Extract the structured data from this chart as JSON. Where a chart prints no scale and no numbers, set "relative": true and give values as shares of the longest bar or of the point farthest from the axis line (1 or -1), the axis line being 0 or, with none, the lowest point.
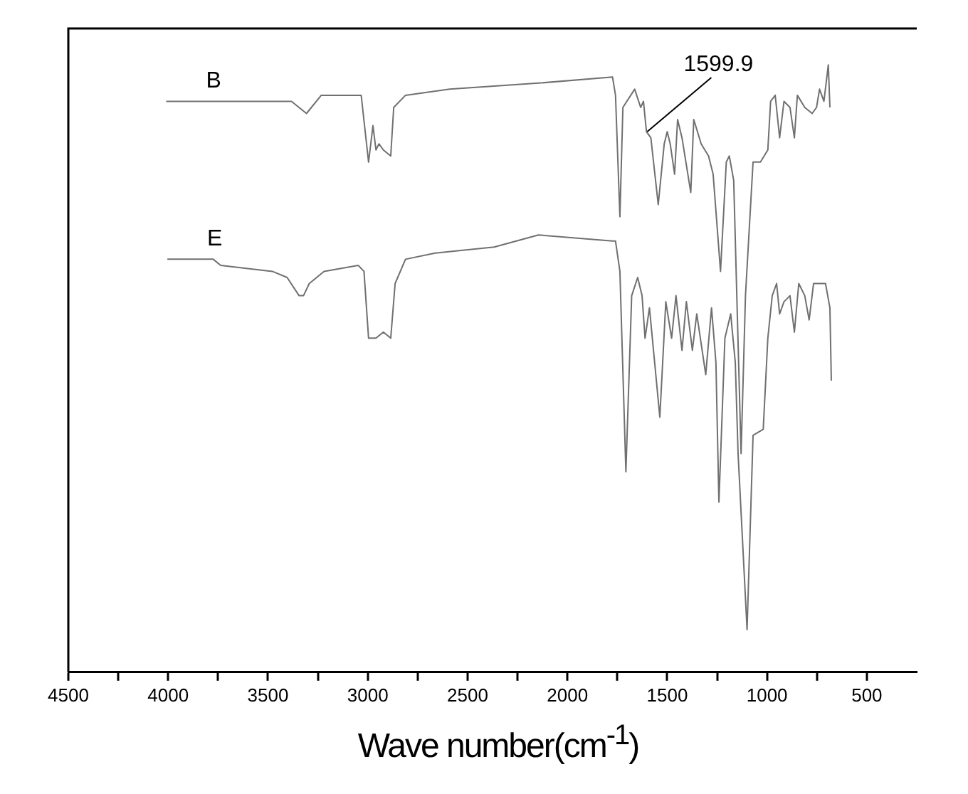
{
  "chart_data": {
    "type": "line",
    "relative": true,
    "xlabel": "Wave number(cm$^{-1}$)",
    "xlim": [
      4500,
      250
    ],
    "xticks": [
      4500,
      {
        "value": 4250,
        "label": null
      },
      4000,
      {
        "value": 3750,
        "label": null
      },
      3500,
      {
        "value": 3250,
        "label": null
      },
      3000,
      {
        "value": 2750,
        "label": null
      },
      2500,
      {
        "value": 2250,
        "label": null
      },
      2000,
      {
        "value": 1750,
        "label": null
      },
      1500,
      {
        "value": 1250,
        "label": null
      },
      1000,
      {
        "value": 750,
        "label": null
      },
      500
    ],
    "grid": false,
    "legend": false,
    "marker": "none",
    "line_style": "solid",
    "annotations": [
      {
        "text": "1599.9",
        "x": 1599.9,
        "y": 0.89
      }
    ],
    "series": [
      {
        "name": "B",
        "color": "#707070",
        "x": [
          4010,
          3382,
          3307,
          3233,
          3033,
          2996,
          2974,
          2959,
          2944,
          2922,
          2885,
          2870,
          2811,
          2589,
          2145,
          1774,
          1759,
          1737,
          1722,
          1663,
          1633,
          1619,
          1604,
          1582,
          1545,
          1515,
          1500,
          1485,
          1463,
          1448,
          1426,
          1382,
          1367,
          1330,
          1293,
          1270,
          1233,
          1204,
          1189,
          1167,
          1130,
          1108,
          1070,
          1033,
          996,
          982,
          959,
          937,
          915,
          885,
          863,
          848,
          811,
          774,
          752,
          737,
          715,
          693,
          685
        ],
        "values": [
          0.94,
          0.94,
          0.92,
          0.95,
          0.95,
          0.84,
          0.9,
          0.86,
          0.87,
          0.86,
          0.85,
          0.93,
          0.95,
          0.96,
          0.97,
          0.98,
          0.95,
          0.75,
          0.93,
          0.96,
          0.93,
          0.94,
          0.89,
          0.88,
          0.77,
          0.87,
          0.89,
          0.87,
          0.82,
          0.91,
          0.88,
          0.79,
          0.91,
          0.87,
          0.85,
          0.82,
          0.66,
          0.84,
          0.85,
          0.81,
          0.36,
          0.62,
          0.84,
          0.84,
          0.86,
          0.94,
          0.95,
          0.88,
          0.94,
          0.93,
          0.88,
          0.95,
          0.93,
          0.92,
          0.93,
          0.96,
          0.94,
          1.0,
          0.93
        ]
      },
      {
        "name": "E",
        "color": "#707070",
        "x": [
          4004,
          3774,
          3737,
          3478,
          3404,
          3344,
          3322,
          3293,
          3219,
          3048,
          3019,
          2996,
          2959,
          2922,
          2885,
          2863,
          2811,
          2663,
          2367,
          2145,
          1774,
          1759,
          1737,
          1707,
          1678,
          1648,
          1626,
          1611,
          1589,
          1537,
          1507,
          1478,
          1456,
          1426,
          1404,
          1374,
          1352,
          1307,
          1278,
          1256,
          1241,
          1211,
          1182,
          1159,
          1145,
          1100,
          1070,
          1019,
          996,
          974,
          952,
          937,
          915,
          885,
          863,
          841,
          811,
          789,
          767,
          737,
          707,
          685,
          678
        ],
        "values": [
          0.68,
          0.68,
          0.67,
          0.66,
          0.65,
          0.62,
          0.62,
          0.64,
          0.66,
          0.67,
          0.66,
          0.55,
          0.55,
          0.56,
          0.55,
          0.64,
          0.68,
          0.69,
          0.7,
          0.72,
          0.71,
          0.71,
          0.66,
          0.33,
          0.62,
          0.65,
          0.62,
          0.55,
          0.6,
          0.42,
          0.61,
          0.55,
          0.62,
          0.53,
          0.61,
          0.53,
          0.59,
          0.49,
          0.6,
          0.51,
          0.28,
          0.55,
          0.59,
          0.51,
          0.36,
          0.07,
          0.39,
          0.4,
          0.55,
          0.62,
          0.64,
          0.59,
          0.61,
          0.62,
          0.56,
          0.64,
          0.62,
          0.58,
          0.64,
          0.64,
          0.64,
          0.6,
          0.48
        ]
      }
    ]
  }
}
